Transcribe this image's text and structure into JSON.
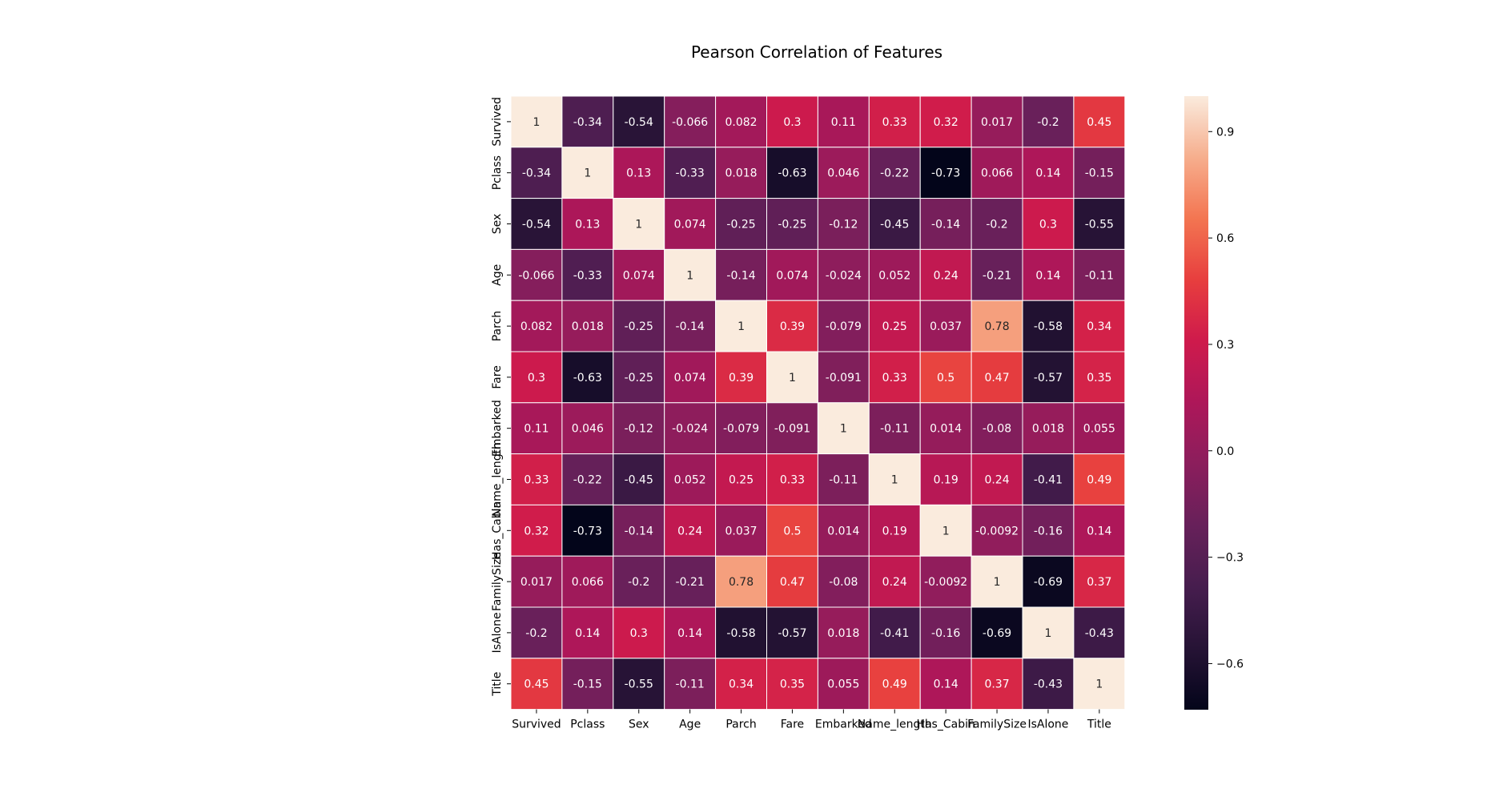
{
  "chart_data": {
    "type": "heatmap",
    "title": "Pearson Correlation of Features",
    "variables": [
      "Survived",
      "Pclass",
      "Sex",
      "Age",
      "Parch",
      "Fare",
      "Embarked",
      "Name_length",
      "Has_Cabin",
      "FamilySize",
      "IsAlone",
      "Title"
    ],
    "matrix": [
      [
        "1",
        "-0.34",
        "-0.54",
        "-0.066",
        "0.082",
        "0.3",
        "0.11",
        "0.33",
        "0.32",
        "0.017",
        "-0.2",
        "0.45"
      ],
      [
        "-0.34",
        "1",
        "0.13",
        "-0.33",
        "0.018",
        "-0.63",
        "0.046",
        "-0.22",
        "-0.73",
        "0.066",
        "0.14",
        "-0.15"
      ],
      [
        "-0.54",
        "0.13",
        "1",
        "0.074",
        "-0.25",
        "-0.25",
        "-0.12",
        "-0.45",
        "-0.14",
        "-0.2",
        "0.3",
        "-0.55"
      ],
      [
        "-0.066",
        "-0.33",
        "0.074",
        "1",
        "-0.14",
        "0.074",
        "-0.024",
        "0.052",
        "0.24",
        "-0.21",
        "0.14",
        "-0.11"
      ],
      [
        "0.082",
        "0.018",
        "-0.25",
        "-0.14",
        "1",
        "0.39",
        "-0.079",
        "0.25",
        "0.037",
        "0.78",
        "-0.58",
        "0.34"
      ],
      [
        "0.3",
        "-0.63",
        "-0.25",
        "0.074",
        "0.39",
        "1",
        "-0.091",
        "0.33",
        "0.5",
        "0.47",
        "-0.57",
        "0.35"
      ],
      [
        "0.11",
        "0.046",
        "-0.12",
        "-0.024",
        "-0.079",
        "-0.091",
        "1",
        "-0.11",
        "0.014",
        "-0.08",
        "0.018",
        "0.055"
      ],
      [
        "0.33",
        "-0.22",
        "-0.45",
        "0.052",
        "0.25",
        "0.33",
        "-0.11",
        "1",
        "0.19",
        "0.24",
        "-0.41",
        "0.49"
      ],
      [
        "0.32",
        "-0.73",
        "-0.14",
        "0.24",
        "0.037",
        "0.5",
        "0.014",
        "0.19",
        "1",
        "-0.0092",
        "-0.16",
        "0.14"
      ],
      [
        "0.017",
        "0.066",
        "-0.2",
        "-0.21",
        "0.78",
        "0.47",
        "-0.08",
        "0.24",
        "-0.0092",
        "1",
        "-0.69",
        "0.37"
      ],
      [
        "-0.2",
        "0.14",
        "0.3",
        "0.14",
        "-0.58",
        "-0.57",
        "0.018",
        "-0.41",
        "-0.16",
        "-0.69",
        "1",
        "-0.43"
      ],
      [
        "0.45",
        "-0.15",
        "-0.55",
        "-0.11",
        "0.34",
        "0.35",
        "0.055",
        "0.49",
        "0.14",
        "0.37",
        "-0.43",
        "1"
      ]
    ],
    "colorbar": {
      "range": [
        -0.73,
        1
      ],
      "ticks": [
        "0.9",
        "0.6",
        "0.3",
        "0.0",
        "−0.3",
        "−0.6"
      ],
      "tick_values": [
        0.9,
        0.6,
        0.3,
        0.0,
        -0.3,
        -0.6
      ],
      "colormap": "rocket"
    },
    "colors": {
      "cell_border": "#ffffff",
      "light_text": "#ffffff",
      "dark_text": "#262626"
    }
  }
}
